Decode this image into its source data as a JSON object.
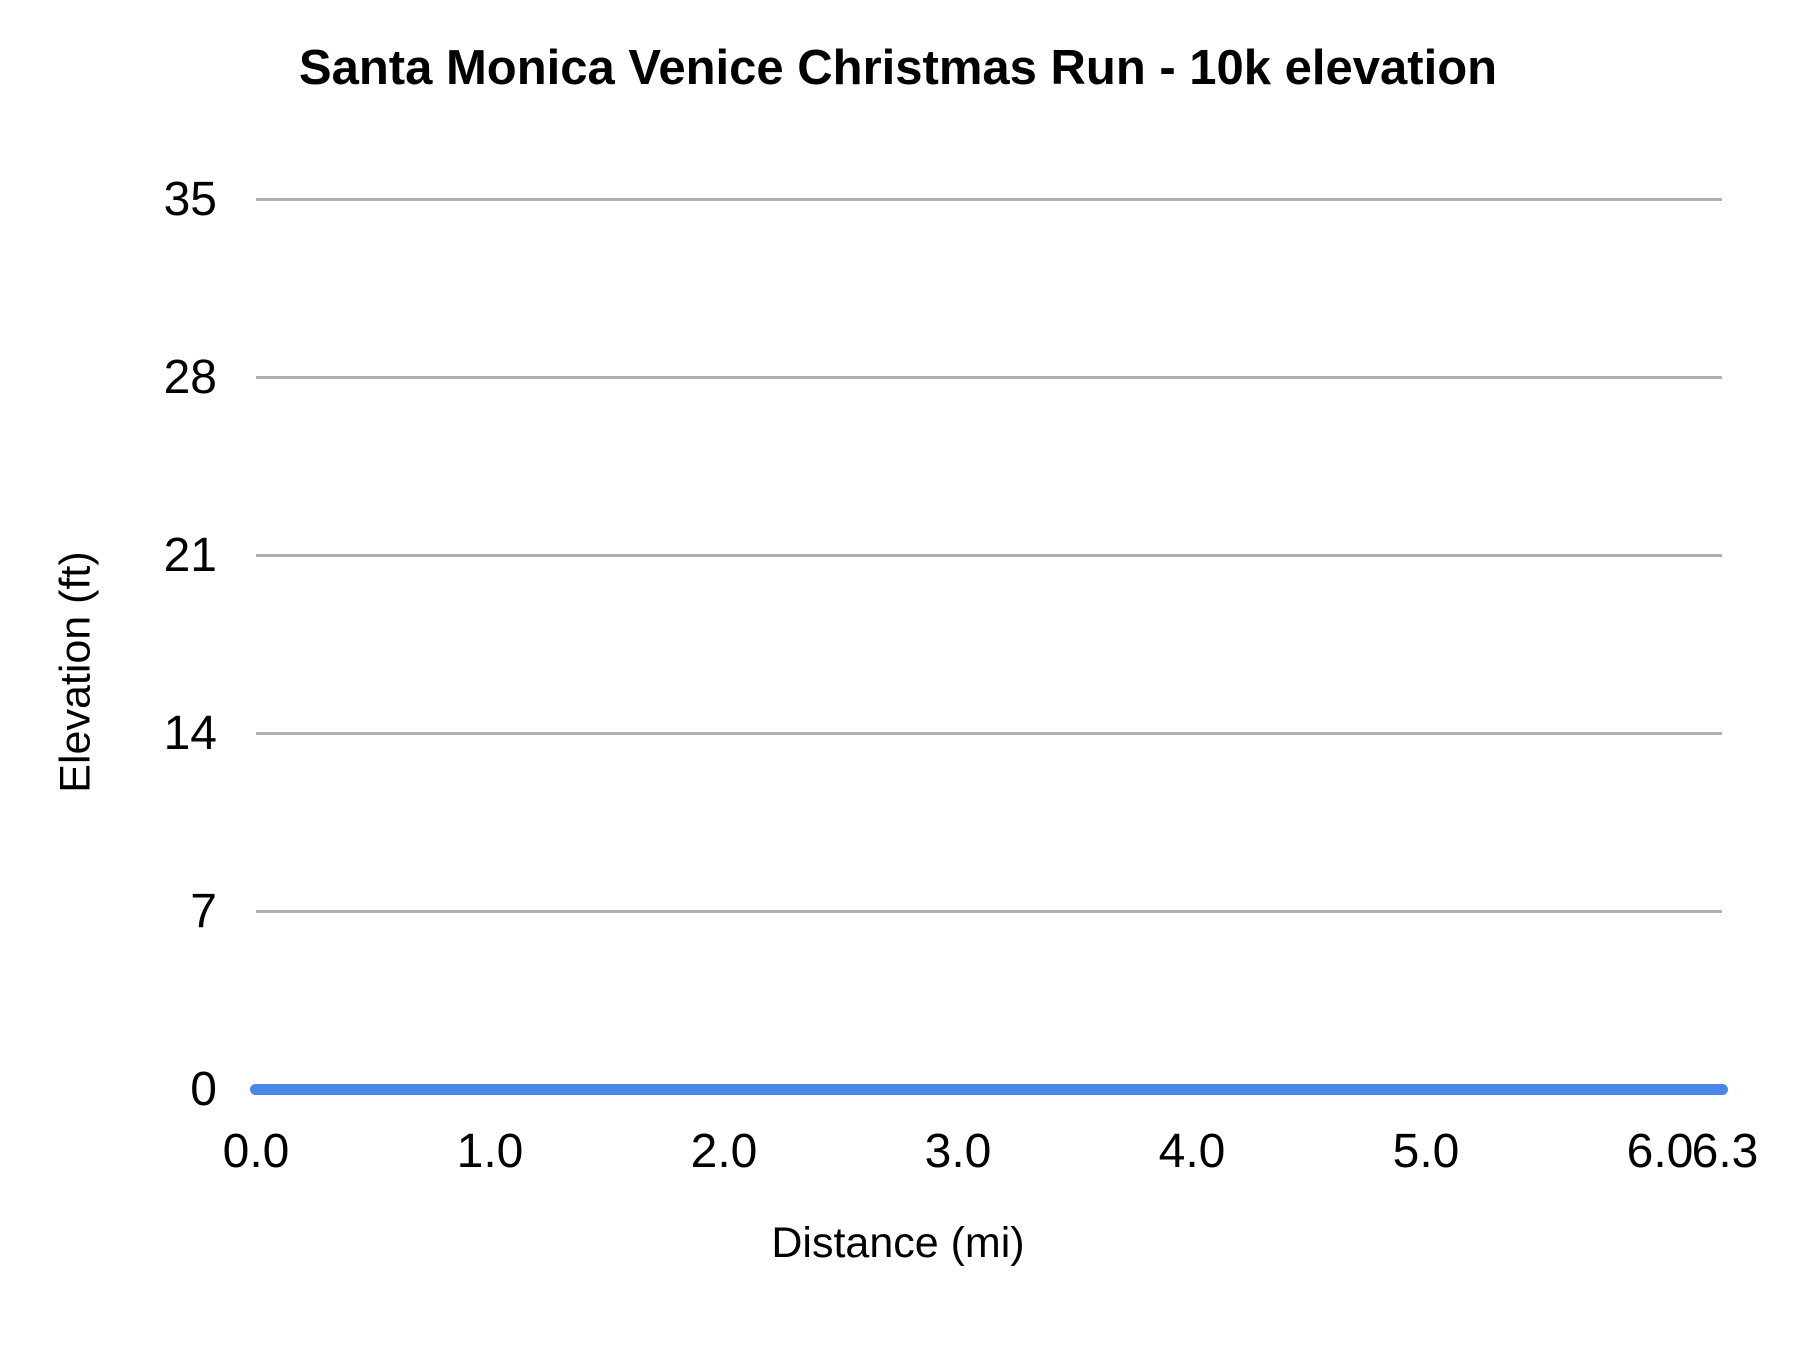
{
  "chart_data": {
    "type": "line",
    "title": "Santa Monica Venice Christmas Run - 10k elevation",
    "xlabel": "Distance (mi)",
    "ylabel": "Elevation (ft)",
    "x_ticks": [
      "0.0",
      "1.0",
      "2.0",
      "3.0",
      "4.0",
      "5.0",
      "6.0",
      "6.3"
    ],
    "y_ticks": [
      "35",
      "28",
      "21",
      "14",
      "7",
      "0"
    ],
    "xlim": [
      0.0,
      6.3
    ],
    "ylim": [
      0,
      35
    ],
    "grid": "horizontal-only",
    "legend_position": "none",
    "series": [
      {
        "name": "Elevation",
        "color": "#4a86e8",
        "x": [
          0.0,
          6.3
        ],
        "y": [
          0,
          0
        ],
        "shape": "flat line at 0 ft across the full 0.0-6.3 mi range, rounded end caps"
      }
    ],
    "colors": {
      "line": "#4a86e8",
      "gridline": "#b0b0b0",
      "text": "#000000",
      "background": "#ffffff"
    }
  }
}
